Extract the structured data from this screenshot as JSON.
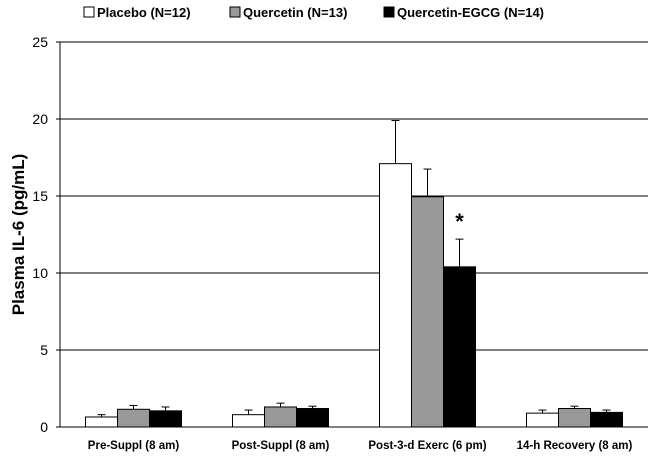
{
  "chart_data": {
    "type": "bar",
    "ylabel": "Plasma IL-6 (pg/mL)",
    "xlabel": "",
    "ylim": [
      0,
      25
    ],
    "yticks": [
      0,
      5,
      10,
      15,
      20,
      25
    ],
    "grid": true,
    "legend_position": "top",
    "categories": [
      "Pre-Suppl (8 am)",
      "Post-Suppl (8 am)",
      "Post-3-d Exerc (6 pm)",
      "14-h Recovery (8 am)"
    ],
    "series": [
      {
        "name": "Placebo (N=12)",
        "color": "#ffffff",
        "values": [
          0.65,
          0.8,
          17.1,
          0.9
        ],
        "errors": [
          0.15,
          0.3,
          2.8,
          0.2
        ]
      },
      {
        "name": "Quercetin (N=13)",
        "color": "#999999",
        "values": [
          1.15,
          1.3,
          14.95,
          1.2
        ],
        "errors": [
          0.25,
          0.25,
          1.8,
          0.15
        ]
      },
      {
        "name": "Quercetin-EGCG (N=14)",
        "color": "#000000",
        "values": [
          1.05,
          1.2,
          10.4,
          0.95
        ],
        "errors": [
          0.25,
          0.15,
          1.8,
          0.15
        ]
      }
    ],
    "annotations": [
      {
        "text": "*",
        "category_index": 2,
        "series_index": 2
      }
    ]
  }
}
